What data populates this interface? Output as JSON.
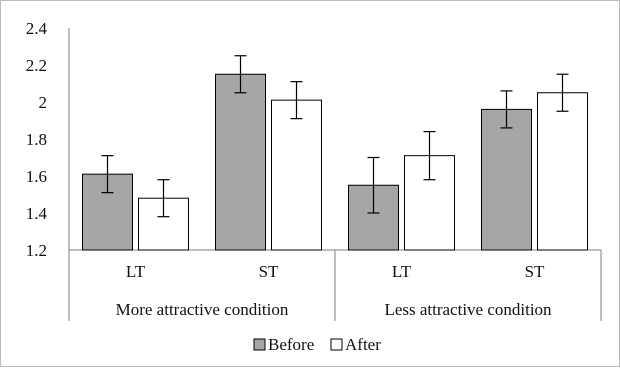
{
  "chart_data": {
    "type": "bar",
    "groups": [
      "More attractive condition",
      "Less attractive condition"
    ],
    "categories": [
      "LT",
      "ST",
      "LT",
      "ST"
    ],
    "series": [
      {
        "name": "Before",
        "values": [
          1.61,
          2.15,
          1.55,
          1.96
        ],
        "errors": [
          0.1,
          0.1,
          0.15,
          0.1
        ]
      },
      {
        "name": "After",
        "values": [
          1.48,
          2.01,
          1.71,
          2.05
        ],
        "errors": [
          0.1,
          0.1,
          0.13,
          0.1
        ]
      }
    ],
    "ylim": [
      1.2,
      2.4
    ],
    "yticks": [
      "1.2",
      "1.4",
      "1.6",
      "1.8",
      "2",
      "2.2",
      "2.4"
    ],
    "grid": false,
    "legend_position": "bottom",
    "colors": {
      "Before": "#a6a6a6",
      "After": "#ffffff",
      "outline": "#000000"
    }
  }
}
